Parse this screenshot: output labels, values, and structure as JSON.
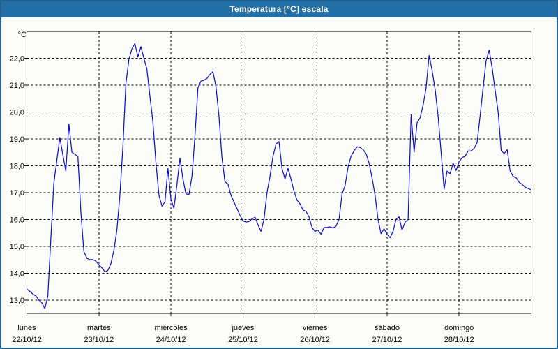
{
  "window": {
    "title": "Temperatura [°C] escala"
  },
  "colors": {
    "titlebar_bg": "#2270a7",
    "titlebar_text": "#ffffff",
    "window_border": "#21628e",
    "content_bg": "#fcfcf8",
    "grid_line": "#000000",
    "axis_line": "#000000",
    "series_line": "#0a0ac8",
    "label_text": "#000000"
  },
  "chart_data": {
    "type": "line",
    "title": "Temperatura [°C] escala",
    "grid": {
      "style": "dashed",
      "horizontal": true,
      "vertical": true
    },
    "legend": "none",
    "y_axis": {
      "unit_label": "°C",
      "lim": [
        12.5,
        23.0
      ],
      "ticks": [
        {
          "value": 22,
          "label": "22,0"
        },
        {
          "value": 21,
          "label": "21,0"
        },
        {
          "value": 20,
          "label": "20,0"
        },
        {
          "value": 19,
          "label": "19,0"
        },
        {
          "value": 18,
          "label": "18,0"
        },
        {
          "value": 17,
          "label": "17,0"
        },
        {
          "value": 16,
          "label": "16,0"
        },
        {
          "value": 15,
          "label": "15,0"
        },
        {
          "value": 14,
          "label": "14,0"
        },
        {
          "value": 13,
          "label": "13,0"
        }
      ]
    },
    "x_axis": {
      "hours_total": 168,
      "days": [
        {
          "name": "lunes",
          "date": "22/10/12"
        },
        {
          "name": "martes",
          "date": "23/10/12"
        },
        {
          "name": "miércoles",
          "date": "24/10/12"
        },
        {
          "name": "jueves",
          "date": "25/10/12"
        },
        {
          "name": "viernes",
          "date": "26/10/12"
        },
        {
          "name": "sábado",
          "date": "27/10/12"
        },
        {
          "name": "domingo",
          "date": "28/10/12"
        }
      ]
    },
    "series": [
      {
        "name": "Temperatura",
        "color": "#0a0ac8",
        "sampling_hours": 1,
        "values": [
          13.4,
          13.32,
          13.22,
          13.15,
          13.0,
          12.9,
          12.68,
          13.15,
          15.3,
          17.35,
          18.2,
          19.05,
          18.4,
          17.8,
          19.55,
          18.5,
          18.42,
          18.35,
          16.25,
          14.8,
          14.55,
          14.5,
          14.5,
          14.45,
          14.3,
          14.2,
          14.05,
          14.1,
          14.35,
          14.85,
          15.6,
          16.9,
          18.7,
          21.05,
          21.95,
          22.35,
          22.55,
          22.05,
          22.43,
          22.0,
          21.6,
          20.6,
          19.6,
          18.1,
          16.9,
          16.5,
          16.65,
          17.9,
          16.75,
          16.42,
          17.3,
          18.28,
          17.5,
          16.95,
          16.93,
          17.6,
          19.1,
          20.9,
          21.15,
          21.18,
          21.25,
          21.4,
          21.5,
          20.95,
          19.85,
          18.3,
          17.4,
          17.32,
          16.9,
          16.65,
          16.4,
          16.15,
          15.95,
          15.9,
          15.92,
          16.02,
          16.08,
          15.8,
          15.55,
          16.0,
          17.0,
          17.6,
          18.35,
          18.8,
          18.9,
          17.9,
          17.5,
          17.9,
          17.5,
          17.05,
          16.72,
          16.58,
          16.35,
          16.3,
          16.1,
          15.7,
          15.55,
          15.6,
          15.45,
          15.7,
          15.7,
          15.72,
          15.68,
          15.75,
          16.0,
          16.95,
          17.25,
          17.95,
          18.35,
          18.55,
          18.7,
          18.68,
          18.6,
          18.45,
          18.1,
          17.55,
          16.9,
          16.0,
          15.47,
          15.65,
          15.45,
          15.32,
          15.55,
          16.0,
          16.1,
          15.6,
          15.9,
          16.0,
          19.9,
          18.5,
          19.6,
          19.78,
          20.25,
          20.9,
          22.1,
          21.55,
          20.85,
          19.85,
          18.5,
          17.12,
          17.8,
          17.7,
          18.1,
          17.82,
          18.15,
          18.3,
          18.35,
          18.55,
          18.55,
          18.65,
          18.85,
          19.85,
          20.9,
          21.9,
          22.3,
          21.64,
          20.8,
          20.0,
          18.57,
          18.45,
          18.6,
          17.8,
          17.6,
          17.55,
          17.38,
          17.3,
          17.2,
          17.15,
          17.1
        ]
      }
    ]
  }
}
